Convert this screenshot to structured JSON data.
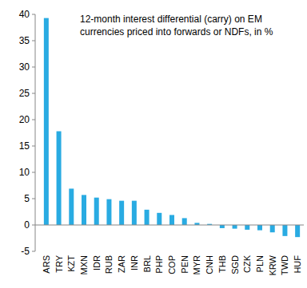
{
  "chart_data": {
    "type": "bar",
    "title": "12-month interest differential (carry) on EM currencies priced into forwards or NDFs, in %",
    "categories": [
      "ARS",
      "TRY",
      "KZT",
      "MXN",
      "IDR",
      "RUB",
      "ZAR",
      "INR",
      "BRL",
      "PHP",
      "COP",
      "PEN",
      "MYR",
      "CNH",
      "THB",
      "SGD",
      "CZK",
      "PLN",
      "KRW",
      "TWD",
      "HUF"
    ],
    "values": [
      39.3,
      17.8,
      6.9,
      5.7,
      5.2,
      4.9,
      4.6,
      4.6,
      2.9,
      2.3,
      1.9,
      1.3,
      0.4,
      0.2,
      -0.6,
      -0.7,
      -0.9,
      -1.0,
      -1.4,
      -2.1,
      -2.3
    ],
    "color": "#29abe2",
    "ylim": [
      -5,
      40
    ],
    "yticks": [
      -5,
      0,
      5,
      10,
      15,
      20,
      25,
      30,
      35,
      40
    ],
    "grid": false
  }
}
